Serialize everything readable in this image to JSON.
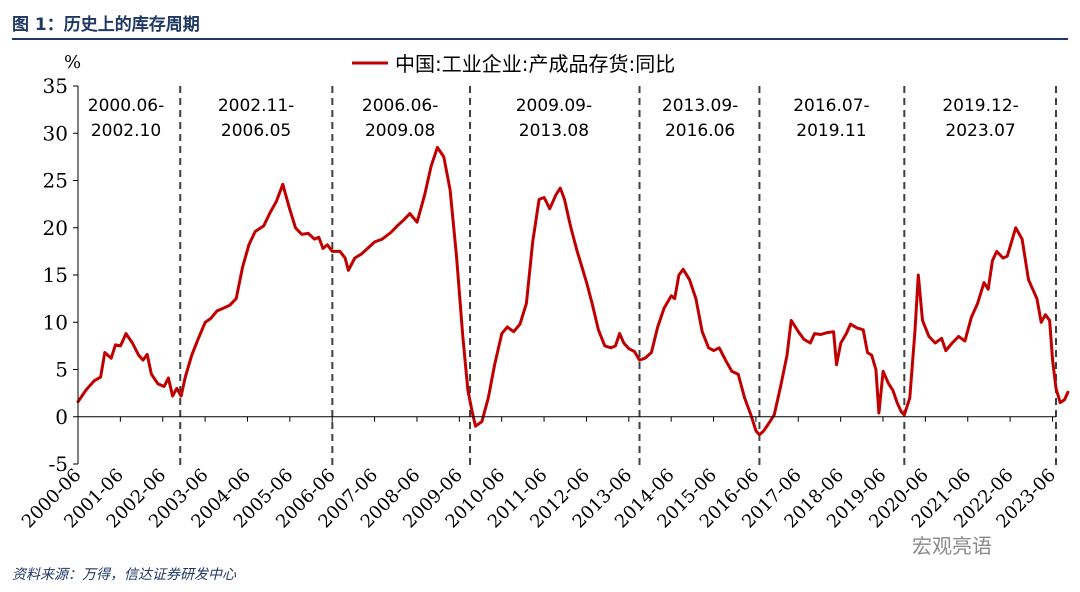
{
  "header": {
    "figure_title": "图 1：历史上的库存周期"
  },
  "footer": {
    "source": "资料来源：万得，信达证券研发中心",
    "watermark": "宏观亮语"
  },
  "chart_data": {
    "type": "line",
    "ylabel": "%",
    "ylim": [
      -5,
      35
    ],
    "yticks": [
      -5,
      0,
      5,
      10,
      15,
      20,
      25,
      30,
      35
    ],
    "x_range": [
      2000.417,
      2023.5
    ],
    "xtick_labels": [
      "2000-06",
      "2001-06",
      "2002-06",
      "2003-06",
      "2004-06",
      "2005-06",
      "2006-06",
      "2007-06",
      "2008-06",
      "2009-06",
      "2010-06",
      "2011-06",
      "2012-06",
      "2013-06",
      "2014-06",
      "2015-06",
      "2016-06",
      "2017-06",
      "2018-06",
      "2019-06",
      "2020-06",
      "2021-06",
      "2022-06",
      "2023-06"
    ],
    "legend": {
      "position": "top-center"
    },
    "line_color": "#c00000",
    "series": [
      {
        "name": "中国:工业企业:产成品存货:同比",
        "points": [
          [
            2000.42,
            1.6
          ],
          [
            2000.6,
            2.8
          ],
          [
            2000.8,
            3.8
          ],
          [
            2000.95,
            4.2
          ],
          [
            2001.05,
            6.8
          ],
          [
            2001.2,
            6.2
          ],
          [
            2001.3,
            7.6
          ],
          [
            2001.42,
            7.5
          ],
          [
            2001.55,
            8.8
          ],
          [
            2001.7,
            7.8
          ],
          [
            2001.85,
            6.5
          ],
          [
            2001.95,
            6.0
          ],
          [
            2002.05,
            6.6
          ],
          [
            2002.15,
            4.5
          ],
          [
            2002.3,
            3.5
          ],
          [
            2002.45,
            3.2
          ],
          [
            2002.55,
            4.1
          ],
          [
            2002.65,
            2.2
          ],
          [
            2002.75,
            3.0
          ],
          [
            2002.85,
            2.2
          ],
          [
            2002.95,
            4.2
          ],
          [
            2003.1,
            6.5
          ],
          [
            2003.25,
            8.2
          ],
          [
            2003.42,
            10.0
          ],
          [
            2003.55,
            10.4
          ],
          [
            2003.7,
            11.2
          ],
          [
            2003.85,
            11.5
          ],
          [
            2004.0,
            11.8
          ],
          [
            2004.15,
            12.5
          ],
          [
            2004.3,
            15.8
          ],
          [
            2004.45,
            18.2
          ],
          [
            2004.6,
            19.6
          ],
          [
            2004.8,
            20.2
          ],
          [
            2004.95,
            21.6
          ],
          [
            2005.1,
            22.8
          ],
          [
            2005.25,
            24.6
          ],
          [
            2005.4,
            22.2
          ],
          [
            2005.55,
            20.0
          ],
          [
            2005.7,
            19.3
          ],
          [
            2005.85,
            19.4
          ],
          [
            2006.0,
            18.8
          ],
          [
            2006.1,
            19.0
          ],
          [
            2006.2,
            17.8
          ],
          [
            2006.3,
            18.2
          ],
          [
            2006.42,
            17.5
          ],
          [
            2006.6,
            17.5
          ],
          [
            2006.72,
            16.8
          ],
          [
            2006.8,
            15.5
          ],
          [
            2006.95,
            16.8
          ],
          [
            2007.1,
            17.2
          ],
          [
            2007.25,
            17.8
          ],
          [
            2007.42,
            18.5
          ],
          [
            2007.6,
            18.8
          ],
          [
            2007.8,
            19.5
          ],
          [
            2007.95,
            20.2
          ],
          [
            2008.1,
            20.8
          ],
          [
            2008.25,
            21.5
          ],
          [
            2008.42,
            20.6
          ],
          [
            2008.6,
            23.5
          ],
          [
            2008.75,
            26.5
          ],
          [
            2008.9,
            28.5
          ],
          [
            2009.05,
            27.5
          ],
          [
            2009.2,
            24.0
          ],
          [
            2009.35,
            17.0
          ],
          [
            2009.5,
            8.5
          ],
          [
            2009.62,
            2.8
          ],
          [
            2009.72,
            0.5
          ],
          [
            2009.8,
            -1.0
          ],
          [
            2009.95,
            -0.5
          ],
          [
            2010.1,
            2.0
          ],
          [
            2010.25,
            5.5
          ],
          [
            2010.42,
            8.8
          ],
          [
            2010.55,
            9.5
          ],
          [
            2010.7,
            9.0
          ],
          [
            2010.85,
            9.8
          ],
          [
            2011.0,
            12.0
          ],
          [
            2011.15,
            18.5
          ],
          [
            2011.3,
            23.0
          ],
          [
            2011.42,
            23.2
          ],
          [
            2011.55,
            22.0
          ],
          [
            2011.7,
            23.5
          ],
          [
            2011.8,
            24.2
          ],
          [
            2011.9,
            23.0
          ],
          [
            2012.05,
            20.0
          ],
          [
            2012.2,
            17.5
          ],
          [
            2012.3,
            16.0
          ],
          [
            2012.42,
            14.2
          ],
          [
            2012.55,
            12.0
          ],
          [
            2012.7,
            9.2
          ],
          [
            2012.85,
            7.5
          ],
          [
            2013.0,
            7.3
          ],
          [
            2013.1,
            7.5
          ],
          [
            2013.2,
            8.8
          ],
          [
            2013.3,
            7.8
          ],
          [
            2013.42,
            7.2
          ],
          [
            2013.55,
            6.9
          ],
          [
            2013.67,
            6.0
          ],
          [
            2013.8,
            6.2
          ],
          [
            2013.95,
            6.8
          ],
          [
            2014.1,
            9.5
          ],
          [
            2014.25,
            11.5
          ],
          [
            2014.42,
            12.8
          ],
          [
            2014.5,
            12.5
          ],
          [
            2014.6,
            15.0
          ],
          [
            2014.7,
            15.6
          ],
          [
            2014.85,
            14.5
          ],
          [
            2015.0,
            12.5
          ],
          [
            2015.15,
            9.0
          ],
          [
            2015.3,
            7.3
          ],
          [
            2015.42,
            7.0
          ],
          [
            2015.55,
            7.3
          ],
          [
            2015.7,
            6.0
          ],
          [
            2015.85,
            4.8
          ],
          [
            2016.0,
            4.5
          ],
          [
            2016.15,
            2.0
          ],
          [
            2016.3,
            0.2
          ],
          [
            2016.42,
            -1.5
          ],
          [
            2016.5,
            -1.9
          ],
          [
            2016.6,
            -1.5
          ],
          [
            2016.75,
            -0.5
          ],
          [
            2016.85,
            0.2
          ],
          [
            2017.0,
            3.2
          ],
          [
            2017.15,
            6.5
          ],
          [
            2017.25,
            10.2
          ],
          [
            2017.42,
            9.0
          ],
          [
            2017.55,
            8.2
          ],
          [
            2017.7,
            7.8
          ],
          [
            2017.8,
            8.8
          ],
          [
            2017.95,
            8.7
          ],
          [
            2018.1,
            8.9
          ],
          [
            2018.25,
            9.0
          ],
          [
            2018.32,
            5.5
          ],
          [
            2018.42,
            7.8
          ],
          [
            2018.55,
            8.8
          ],
          [
            2018.65,
            9.8
          ],
          [
            2018.8,
            9.4
          ],
          [
            2018.95,
            9.2
          ],
          [
            2019.05,
            6.8
          ],
          [
            2019.15,
            6.5
          ],
          [
            2019.25,
            5.0
          ],
          [
            2019.32,
            0.4
          ],
          [
            2019.42,
            4.8
          ],
          [
            2019.55,
            3.5
          ],
          [
            2019.65,
            2.8
          ],
          [
            2019.75,
            1.5
          ],
          [
            2019.85,
            0.5
          ],
          [
            2019.92,
            0.2
          ],
          [
            2020.05,
            2.0
          ],
          [
            2020.17,
            9.0
          ],
          [
            2020.25,
            15.0
          ],
          [
            2020.35,
            10.2
          ],
          [
            2020.5,
            8.5
          ],
          [
            2020.65,
            7.8
          ],
          [
            2020.8,
            8.3
          ],
          [
            2020.9,
            7.0
          ],
          [
            2021.05,
            7.8
          ],
          [
            2021.2,
            8.5
          ],
          [
            2021.35,
            8.0
          ],
          [
            2021.5,
            10.5
          ],
          [
            2021.65,
            12.0
          ],
          [
            2021.8,
            14.2
          ],
          [
            2021.9,
            13.5
          ],
          [
            2022.0,
            16.5
          ],
          [
            2022.1,
            17.5
          ],
          [
            2022.25,
            16.8
          ],
          [
            2022.35,
            17.0
          ],
          [
            2022.45,
            18.5
          ],
          [
            2022.55,
            20.0
          ],
          [
            2022.7,
            18.8
          ],
          [
            2022.85,
            14.5
          ],
          [
            2022.95,
            13.5
          ],
          [
            2023.05,
            12.5
          ],
          [
            2023.15,
            10.0
          ],
          [
            2023.25,
            10.8
          ],
          [
            2023.35,
            10.2
          ],
          [
            2023.42,
            6.0
          ],
          [
            2023.5,
            3.0
          ],
          [
            2023.6,
            1.5
          ],
          [
            2023.7,
            1.8
          ],
          [
            2023.78,
            2.6
          ]
        ]
      }
    ],
    "dividers": [
      2002.83,
      2006.42,
      2009.67,
      2013.67,
      2016.5,
      2019.92,
      2023.5
    ],
    "cycle_labels": [
      {
        "line1": "2000.06-",
        "line2": "2002.10",
        "x_center": 2001.55
      },
      {
        "line1": "2002.11-",
        "line2": "2006.05",
        "x_center": 2004.62
      },
      {
        "line1": "2006.06-",
        "line2": "2009.08",
        "x_center": 2008.02
      },
      {
        "line1": "2009.09-",
        "line2": "2013.08",
        "x_center": 2011.65
      },
      {
        "line1": "2013.09-",
        "line2": "2016.06",
        "x_center": 2015.1
      },
      {
        "line1": "2016.07-",
        "line2": "2019.11",
        "x_center": 2018.2
      },
      {
        "line1": "2019.12-",
        "line2": "2023.07",
        "x_center": 2021.72
      }
    ]
  }
}
